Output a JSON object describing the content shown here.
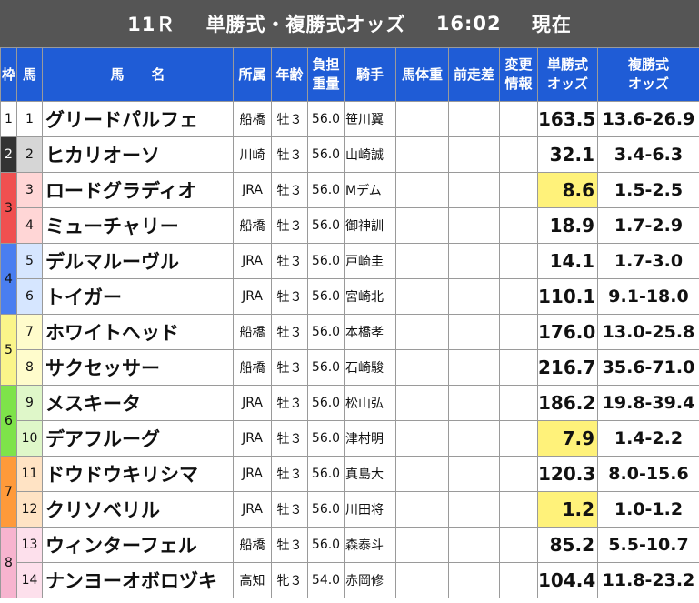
{
  "title": {
    "race": "11Ｒ",
    "label": "単勝式・複勝式オッズ",
    "time": "16:02",
    "status": "現在"
  },
  "headers": {
    "waku": "枠",
    "umaban": "馬",
    "name_a": "馬",
    "name_b": "名",
    "affiliation": "所属",
    "sex_age": "年齢",
    "weight_a": "負担",
    "weight_b": "重量",
    "jockey": "騎手",
    "body_weight": "馬体重",
    "prev_diff": "前走差",
    "change_a": "変更",
    "change_b": "情報",
    "win_a": "単勝式",
    "win_b": "オッズ",
    "place_a": "複勝式",
    "place_b": "オッズ"
  },
  "colors": {
    "header_bg": "#1f5cd6",
    "title_bg": "#555555",
    "highlight": "#fff27a",
    "mare_text": "#e02020",
    "waku": {
      "1": "#ffffff",
      "2": "#333333",
      "3": "#f05050",
      "4": "#4a7ef0",
      "5": "#faf58a",
      "6": "#7ee34a",
      "7": "#ff9a3a",
      "8": "#f7b4cf"
    },
    "uma_cell": {
      "1": "#ffffff",
      "2": "#d6d6d6",
      "3": "#ffd6d6",
      "4": "#d6e6ff",
      "5": "#fffccc",
      "6": "#dff7c9",
      "7": "#ffe3c4",
      "8": "#fde0ec"
    }
  },
  "waku_groups": [
    {
      "waku": "1",
      "rows": 1
    },
    {
      "waku": "2",
      "rows": 1
    },
    {
      "waku": "3",
      "rows": 2
    },
    {
      "waku": "4",
      "rows": 2
    },
    {
      "waku": "5",
      "rows": 2
    },
    {
      "waku": "6",
      "rows": 2
    },
    {
      "waku": "7",
      "rows": 2
    },
    {
      "waku": "8",
      "rows": 2
    }
  ],
  "rows": [
    {
      "waku": "1",
      "umaban": "1",
      "name": "グリードパルフェ",
      "affiliation": "船橋",
      "sex_age": "牡３",
      "mare": false,
      "weight": "56.0",
      "jockey": "笹川翼",
      "body_weight": "",
      "prev_diff": "",
      "change": "",
      "win": "163.5",
      "place": "13.6-26.9",
      "hl": false
    },
    {
      "waku": "2",
      "umaban": "2",
      "name": "ヒカリオーソ",
      "affiliation": "川崎",
      "sex_age": "牡３",
      "mare": false,
      "weight": "56.0",
      "jockey": "山崎誠",
      "body_weight": "",
      "prev_diff": "",
      "change": "",
      "win": "32.1",
      "place": "3.4-6.3",
      "hl": false
    },
    {
      "waku": "3",
      "umaban": "3",
      "name": "ロードグラディオ",
      "affiliation": "JRA",
      "sex_age": "牡３",
      "mare": false,
      "weight": "56.0",
      "jockey": "Mデム",
      "body_weight": "",
      "prev_diff": "",
      "change": "",
      "win": "8.6",
      "place": "1.5-2.5",
      "hl": true
    },
    {
      "waku": "3",
      "umaban": "4",
      "name": "ミューチャリー",
      "affiliation": "船橋",
      "sex_age": "牡３",
      "mare": false,
      "weight": "56.0",
      "jockey": "御神訓",
      "body_weight": "",
      "prev_diff": "",
      "change": "",
      "win": "18.9",
      "place": "1.7-2.9",
      "hl": false
    },
    {
      "waku": "4",
      "umaban": "5",
      "name": "デルマルーヴル",
      "affiliation": "JRA",
      "sex_age": "牡３",
      "mare": false,
      "weight": "56.0",
      "jockey": "戸崎圭",
      "body_weight": "",
      "prev_diff": "",
      "change": "",
      "win": "14.1",
      "place": "1.7-3.0",
      "hl": false
    },
    {
      "waku": "4",
      "umaban": "6",
      "name": "トイガー",
      "affiliation": "JRA",
      "sex_age": "牡３",
      "mare": false,
      "weight": "56.0",
      "jockey": "宮崎北",
      "body_weight": "",
      "prev_diff": "",
      "change": "",
      "win": "110.1",
      "place": "9.1-18.0",
      "hl": false
    },
    {
      "waku": "5",
      "umaban": "7",
      "name": "ホワイトヘッド",
      "affiliation": "船橋",
      "sex_age": "牡３",
      "mare": false,
      "weight": "56.0",
      "jockey": "本橋孝",
      "body_weight": "",
      "prev_diff": "",
      "change": "",
      "win": "176.0",
      "place": "13.0-25.8",
      "hl": false
    },
    {
      "waku": "5",
      "umaban": "8",
      "name": "サクセッサー",
      "affiliation": "船橋",
      "sex_age": "牡３",
      "mare": false,
      "weight": "56.0",
      "jockey": "石崎駿",
      "body_weight": "",
      "prev_diff": "",
      "change": "",
      "win": "216.7",
      "place": "35.6-71.0",
      "hl": false
    },
    {
      "waku": "6",
      "umaban": "9",
      "name": "メスキータ",
      "affiliation": "JRA",
      "sex_age": "牡３",
      "mare": false,
      "weight": "56.0",
      "jockey": "松山弘",
      "body_weight": "",
      "prev_diff": "",
      "change": "",
      "win": "186.2",
      "place": "19.8-39.4",
      "hl": false
    },
    {
      "waku": "6",
      "umaban": "10",
      "name": "デアフルーグ",
      "affiliation": "JRA",
      "sex_age": "牡３",
      "mare": false,
      "weight": "56.0",
      "jockey": "津村明",
      "body_weight": "",
      "prev_diff": "",
      "change": "",
      "win": "7.9",
      "place": "1.4-2.2",
      "hl": true
    },
    {
      "waku": "7",
      "umaban": "11",
      "name": "ドウドウキリシマ",
      "affiliation": "JRA",
      "sex_age": "牡３",
      "mare": false,
      "weight": "56.0",
      "jockey": "真島大",
      "body_weight": "",
      "prev_diff": "",
      "change": "",
      "win": "120.3",
      "place": "8.0-15.6",
      "hl": false
    },
    {
      "waku": "7",
      "umaban": "12",
      "name": "クリソベリル",
      "affiliation": "JRA",
      "sex_age": "牡３",
      "mare": false,
      "weight": "56.0",
      "jockey": "川田将",
      "body_weight": "",
      "prev_diff": "",
      "change": "",
      "win": "1.2",
      "place": "1.0-1.2",
      "hl": true
    },
    {
      "waku": "8",
      "umaban": "13",
      "name": "ウィンターフェル",
      "affiliation": "船橋",
      "sex_age": "牡３",
      "mare": false,
      "weight": "56.0",
      "jockey": "森泰斗",
      "body_weight": "",
      "prev_diff": "",
      "change": "",
      "win": "85.2",
      "place": "5.5-10.7",
      "hl": false
    },
    {
      "waku": "8",
      "umaban": "14",
      "name": "ナンヨーオボロヅキ",
      "affiliation": "高知",
      "sex_age": "牝３",
      "mare": true,
      "weight": "54.0",
      "jockey": "赤岡修",
      "body_weight": "",
      "prev_diff": "",
      "change": "",
      "win": "104.4",
      "place": "11.8-23.2",
      "hl": false
    }
  ]
}
